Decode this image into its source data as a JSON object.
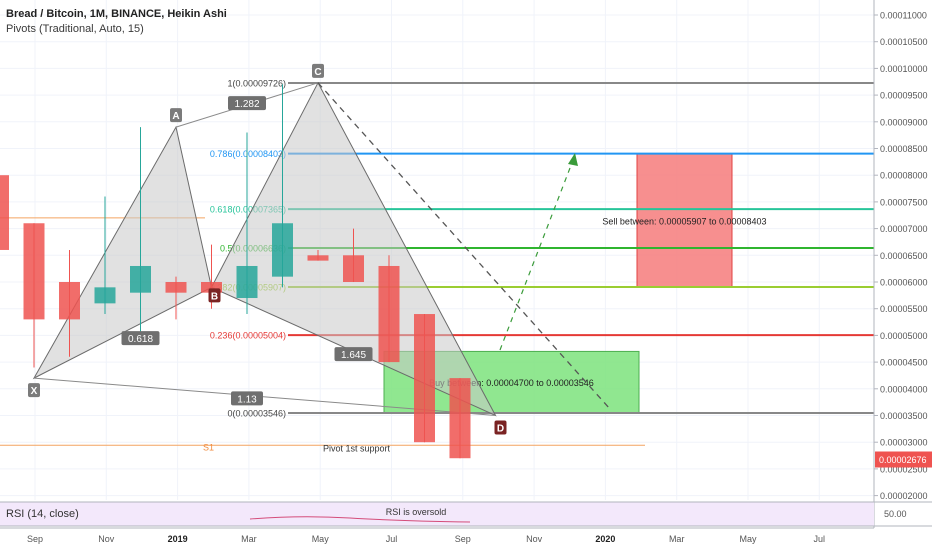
{
  "legend": {
    "symbol_line": "Bread / Bitcoin, 1M, BINANCE, Heikin Ashi",
    "pivots_line": "Pivots (Traditional, Auto, 15)"
  },
  "colors": {
    "bull": "#26a69a",
    "bear": "#ef5350",
    "pattern_fill": "#c8c8c8",
    "buy_zone": "#7de37d",
    "sell_zone": "#f67b7b"
  },
  "chart_data": {
    "type": "candlestick",
    "style": "Heikin Ashi",
    "timeframe": "1M",
    "x_axis_labels": [
      "Sep",
      "Nov",
      "2019",
      "Mar",
      "May",
      "Jul",
      "Sep",
      "Nov",
      "2020",
      "Mar",
      "May",
      "Jul"
    ],
    "price_axis_labels": [
      "0.00011000",
      "0.00010500",
      "0.00010000",
      "0.00009500",
      "0.00009000",
      "0.00008500",
      "0.00008000",
      "0.00007500",
      "0.00007000",
      "0.00006500",
      "0.00006000",
      "0.00005500",
      "0.00005000",
      "0.00004500",
      "0.00004000",
      "0.00003500",
      "0.00003000",
      "0.00002500",
      "0.00002000"
    ],
    "ylim": [
      1.95e-05,
      0.0001115
    ],
    "last_price": "0.00002676",
    "candles": [
      {
        "date": "2018-06",
        "open": 8e-05,
        "high": 8.1e-05,
        "low": 5.5e-05,
        "close": 6.6e-05
      },
      {
        "date": "2018-07",
        "open": 7.1e-05,
        "high": 7.1e-05,
        "low": 4.4e-05,
        "close": 5.3e-05
      },
      {
        "date": "2018-08",
        "open": 6e-05,
        "high": 6.6e-05,
        "low": 4.6e-05,
        "close": 5.3e-05
      },
      {
        "date": "2018-09",
        "open": 5.6e-05,
        "high": 7.6e-05,
        "low": 5.4e-05,
        "close": 5.9e-05
      },
      {
        "date": "2018-10",
        "open": 5.8e-05,
        "high": 8.9e-05,
        "low": 4.9e-05,
        "close": 6.3e-05
      },
      {
        "date": "2018-11",
        "open": 6e-05,
        "high": 6.1e-05,
        "low": 5.3e-05,
        "close": 5.8e-05
      },
      {
        "date": "2018-12",
        "open": 6e-05,
        "high": 6.7e-05,
        "low": 5.5e-05,
        "close": 5.8e-05
      },
      {
        "date": "2019-01",
        "open": 5.7e-05,
        "high": 8.8e-05,
        "low": 5.4e-05,
        "close": 6.3e-05
      },
      {
        "date": "2019-02",
        "open": 6.1e-05,
        "high": 9.7e-05,
        "low": 5.9e-05,
        "close": 7.1e-05
      },
      {
        "date": "2019-03",
        "open": 6.5e-05,
        "high": 6.6e-05,
        "low": 6.4e-05,
        "close": 6.4e-05
      },
      {
        "date": "2019-04",
        "open": 6.5e-05,
        "high": 7e-05,
        "low": 6e-05,
        "close": 6e-05
      },
      {
        "date": "2019-05",
        "open": 6.3e-05,
        "high": 6.5e-05,
        "low": 4.5e-05,
        "close": 4.5e-05
      },
      {
        "date": "2019-06",
        "open": 5.4e-05,
        "high": 5.4e-05,
        "low": 3e-05,
        "close": 3e-05
      },
      {
        "date": "2019-07",
        "open": 4.2e-05,
        "high": 4.2e-05,
        "low": 2.7e-05,
        "close": 2.7e-05
      }
    ],
    "harmonic_pattern": {
      "points": [
        {
          "label": "X",
          "date": "2018-07",
          "price": 4.2e-05
        },
        {
          "label": "A",
          "date": "2018-11",
          "price": 8.9e-05
        },
        {
          "label": "B",
          "date": "2018-12",
          "price": 5.9e-05
        },
        {
          "label": "C",
          "date": "2019-03",
          "price": 9.73e-05
        },
        {
          "label": "D",
          "date": "2019-08",
          "price": 3.5e-05
        }
      ],
      "ratios": [
        {
          "value": "1.282",
          "date": "2019-01",
          "price": 9.35e-05
        },
        {
          "value": "0.618",
          "date": "2018-10",
          "price": 4.95e-05
        },
        {
          "value": "1.645",
          "date": "2019-04",
          "price": 4.65e-05
        },
        {
          "value": "1.13",
          "date": "2019-01",
          "price": 3.82e-05
        }
      ]
    },
    "fib_levels": [
      {
        "label": "1(0.00009726)",
        "price": 9.726e-05,
        "color": "#888888"
      },
      {
        "label": "0.786(0.00008403)",
        "price": 8.403e-05,
        "color": "#2196f3"
      },
      {
        "label": "0.618(0.00007365)",
        "price": 7.365e-05,
        "color": "#26c49a"
      },
      {
        "label": "0.5(0.00006636)",
        "price": 6.636e-05,
        "color": "#2fb52f"
      },
      {
        "label": "0.382(0.00005907)",
        "price": 5.907e-05,
        "color": "#9acd32"
      },
      {
        "label": "0.236(0.00005004)",
        "price": 5.004e-05,
        "color": "#e53935"
      },
      {
        "label": "0(0.00003546)",
        "price": 3.546e-05,
        "color": "#888888"
      }
    ],
    "zones": [
      {
        "name": "Buy between: 0.00004700 to 0.00003546",
        "from": 4.7e-05,
        "to": 3.546e-05,
        "start": "2019-05",
        "end": "2019-11"
      },
      {
        "name": "Sell between: 0.00005907 to 0.00008403",
        "from": 5.907e-05,
        "to": 8.403e-05,
        "start": "2019-11",
        "end": "2020-03"
      }
    ],
    "pivots": [
      {
        "label": "S1",
        "note": "Pivot 1st support",
        "price": 2.83e-05
      }
    ],
    "horizontal_lines": [
      7.2e-05
    ],
    "rsi": {
      "title": "RSI (14, close)",
      "value": "50.00",
      "annotation": "RSI is oversold"
    }
  }
}
